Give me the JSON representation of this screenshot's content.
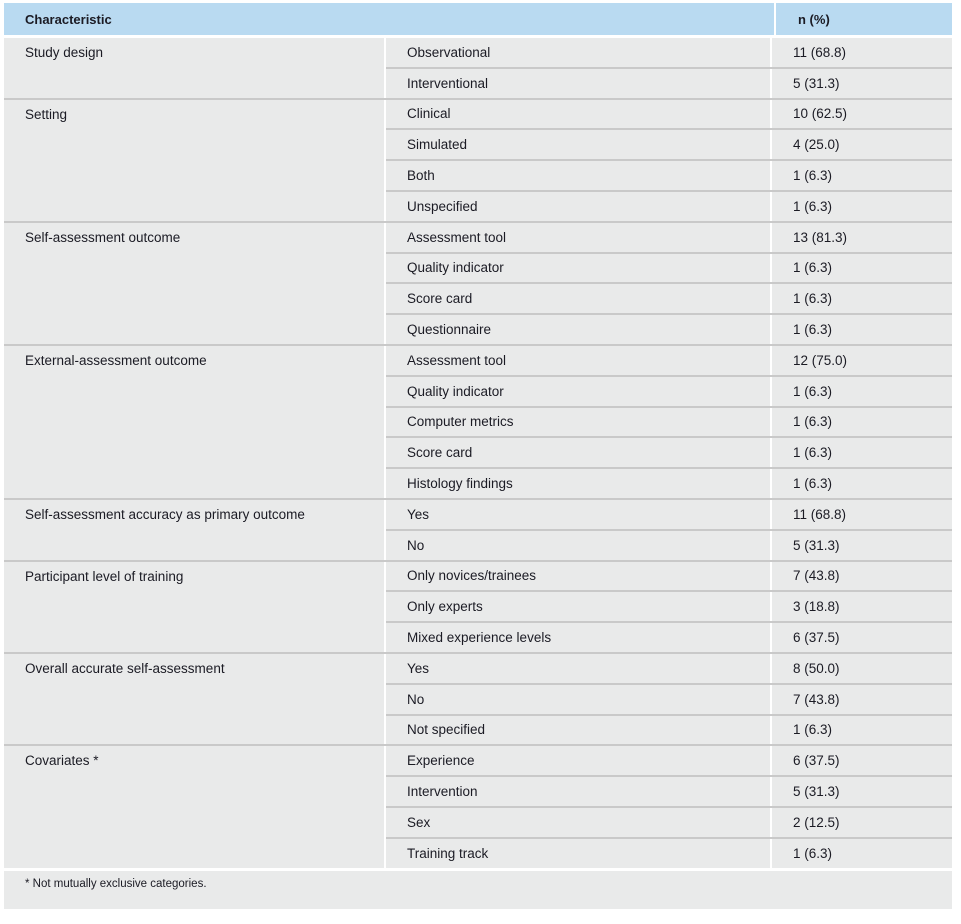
{
  "header": {
    "characteristic": "Characteristic",
    "n_pct": "n (%)"
  },
  "groups": [
    {
      "label": "Study design",
      "rows": [
        {
          "category": "Observational",
          "value": "11 (68.8)"
        },
        {
          "category": "Interventional",
          "value": "5 (31.3)"
        }
      ]
    },
    {
      "label": "Setting",
      "rows": [
        {
          "category": "Clinical",
          "value": "10 (62.5)"
        },
        {
          "category": "Simulated",
          "value": "4 (25.0)"
        },
        {
          "category": "Both",
          "value": "1 (6.3)"
        },
        {
          "category": "Unspecified",
          "value": "1 (6.3)"
        }
      ]
    },
    {
      "label": "Self-assessment outcome",
      "rows": [
        {
          "category": "Assessment tool",
          "value": "13 (81.3)"
        },
        {
          "category": "Quality indicator",
          "value": "1 (6.3)"
        },
        {
          "category": "Score card",
          "value": "1 (6.3)"
        },
        {
          "category": "Questionnaire",
          "value": "1 (6.3)"
        }
      ]
    },
    {
      "label": "External-assessment outcome",
      "rows": [
        {
          "category": "Assessment tool",
          "value": "12 (75.0)"
        },
        {
          "category": "Quality indicator",
          "value": "1 (6.3)"
        },
        {
          "category": "Computer metrics",
          "value": "1 (6.3)"
        },
        {
          "category": "Score card",
          "value": "1 (6.3)"
        },
        {
          "category": "Histology findings",
          "value": "1 (6.3)"
        }
      ]
    },
    {
      "label": "Self-assessment accuracy as primary outcome",
      "rows": [
        {
          "category": "Yes",
          "value": "11 (68.8)"
        },
        {
          "category": "No",
          "value": "5 (31.3)"
        }
      ]
    },
    {
      "label": "Participant level of training",
      "rows": [
        {
          "category": "Only novices/trainees",
          "value": "7 (43.8)"
        },
        {
          "category": "Only experts",
          "value": "3 (18.8)"
        },
        {
          "category": "Mixed experience levels",
          "value": "6 (37.5)"
        }
      ]
    },
    {
      "label": "Overall accurate self-assessment",
      "rows": [
        {
          "category": "Yes",
          "value": "8 (50.0)"
        },
        {
          "category": "No",
          "value": "7 (43.8)"
        },
        {
          "category": "Not specified",
          "value": "1 (6.3)"
        }
      ]
    },
    {
      "label": "Covariates *",
      "rows": [
        {
          "category": "Experience",
          "value": "6 (37.5)"
        },
        {
          "category": "Intervention",
          "value": "5 (31.3)"
        },
        {
          "category": "Sex",
          "value": "2 (12.5)"
        },
        {
          "category": "Training track",
          "value": "1 (6.3)"
        }
      ]
    }
  ],
  "footnote": "* Not mutually exclusive categories.",
  "colors": {
    "header_bg": "#b9daf1",
    "cell_bg": "#e9eaea",
    "rule": "#c9c9c9"
  }
}
